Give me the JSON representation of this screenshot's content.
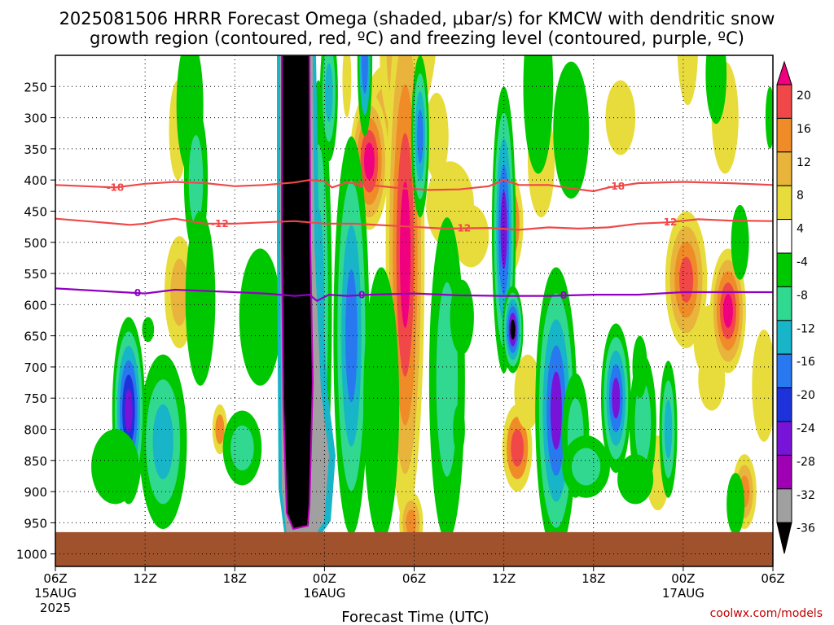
{
  "chart_data": {
    "type": "heatmap",
    "title_line1": "2025081506 HRRR Forecast Omega (shaded, μbar/s) for KMCW with dendritic snow",
    "title_line2": "growth region (contoured, red, ºC) and freezing level (contoured, purple, ºC)",
    "xlabel": "Forecast Time (UTC)",
    "credit": "coolwx.com/models",
    "x_ticks": [
      {
        "hour": 0,
        "label": "06Z",
        "sub1": "15AUG",
        "sub2": "2025"
      },
      {
        "hour": 6,
        "label": "12Z",
        "sub1": "",
        "sub2": ""
      },
      {
        "hour": 12,
        "label": "18Z",
        "sub1": "",
        "sub2": ""
      },
      {
        "hour": 18,
        "label": "00Z",
        "sub1": "16AUG",
        "sub2": ""
      },
      {
        "hour": 24,
        "label": "06Z",
        "sub1": "",
        "sub2": ""
      },
      {
        "hour": 30,
        "label": "12Z",
        "sub1": "",
        "sub2": ""
      },
      {
        "hour": 36,
        "label": "18Z",
        "sub1": "",
        "sub2": ""
      },
      {
        "hour": 42,
        "label": "00Z",
        "sub1": "17AUG",
        "sub2": ""
      },
      {
        "hour": 48,
        "label": "06Z",
        "sub1": "",
        "sub2": ""
      }
    ],
    "y_ticks": [
      "250",
      "300",
      "350",
      "400",
      "450",
      "500",
      "550",
      "600",
      "650",
      "700",
      "750",
      "800",
      "850",
      "900",
      "950",
      "1000"
    ],
    "y_range": [
      200,
      1020
    ],
    "x_range": [
      0,
      48
    ],
    "colorbar_labels": [
      "20",
      "16",
      "12",
      "8",
      "4",
      "-4",
      "-8",
      "-12",
      "-16",
      "-20",
      "-24",
      "-28",
      "-32",
      "-36"
    ],
    "colorbar_colors": [
      "#f0007f",
      "#f04848",
      "#f08c28",
      "#e8b43c",
      "#e8dc3c",
      "#ffffff",
      "#00c800",
      "#30d890",
      "#18b4c8",
      "#2878f0",
      "#1e32dc",
      "#7814d8",
      "#a000b4",
      "#a0a0a0",
      "#000000"
    ],
    "ground_color": "#a0522d",
    "ground_top_pressure": 965,
    "contours": [
      {
        "name": "-18",
        "color": "#f04848",
        "points": [
          [
            0,
            408
          ],
          [
            2,
            410
          ],
          [
            4,
            412
          ],
          [
            6,
            406
          ],
          [
            8,
            403
          ],
          [
            10,
            405
          ],
          [
            12,
            410
          ],
          [
            14,
            408
          ],
          [
            16,
            404
          ],
          [
            17,
            400
          ],
          [
            18,
            402
          ],
          [
            18.5,
            412
          ],
          [
            19.5,
            404
          ],
          [
            21,
            408
          ],
          [
            23,
            413
          ],
          [
            25,
            416
          ],
          [
            27,
            415
          ],
          [
            29,
            410
          ],
          [
            30,
            400
          ],
          [
            31,
            408
          ],
          [
            33,
            408
          ],
          [
            35,
            415
          ],
          [
            36,
            418
          ],
          [
            37,
            412
          ],
          [
            39,
            405
          ],
          [
            42,
            403
          ],
          [
            45,
            405
          ],
          [
            48,
            408
          ]
        ],
        "labels": [
          4,
          20.5,
          37.5
        ]
      },
      {
        "name": "-12",
        "color": "#f04848",
        "points": [
          [
            0,
            462
          ],
          [
            3,
            468
          ],
          [
            5,
            472
          ],
          [
            6,
            470
          ],
          [
            7,
            465
          ],
          [
            8,
            462
          ],
          [
            10,
            470
          ],
          [
            12,
            470
          ],
          [
            14,
            468
          ],
          [
            16,
            466
          ],
          [
            18,
            470
          ],
          [
            20,
            470
          ],
          [
            23,
            474
          ],
          [
            26,
            478
          ],
          [
            29,
            477
          ],
          [
            31,
            480
          ],
          [
            33,
            476
          ],
          [
            35,
            478
          ],
          [
            37,
            476
          ],
          [
            39,
            470
          ],
          [
            41,
            468
          ],
          [
            43,
            463
          ],
          [
            45,
            465
          ],
          [
            48,
            466
          ]
        ],
        "labels": [
          11,
          27.2,
          41
        ]
      },
      {
        "name": "0",
        "color": "#9000c0",
        "points": [
          [
            0,
            574
          ],
          [
            3,
            578
          ],
          [
            6,
            582
          ],
          [
            8,
            576
          ],
          [
            10,
            578
          ],
          [
            12,
            580
          ],
          [
            14,
            582
          ],
          [
            16,
            586
          ],
          [
            17,
            584
          ],
          [
            17.5,
            594
          ],
          [
            18.3,
            584
          ],
          [
            19.5,
            586
          ],
          [
            21,
            584
          ],
          [
            24,
            582
          ],
          [
            27,
            585
          ],
          [
            30,
            586
          ],
          [
            33,
            586
          ],
          [
            36,
            584
          ],
          [
            39,
            584
          ],
          [
            42,
            580
          ],
          [
            45,
            580
          ],
          [
            48,
            580
          ]
        ],
        "labels": [
          5.5,
          20.5,
          34
        ]
      }
    ]
  }
}
